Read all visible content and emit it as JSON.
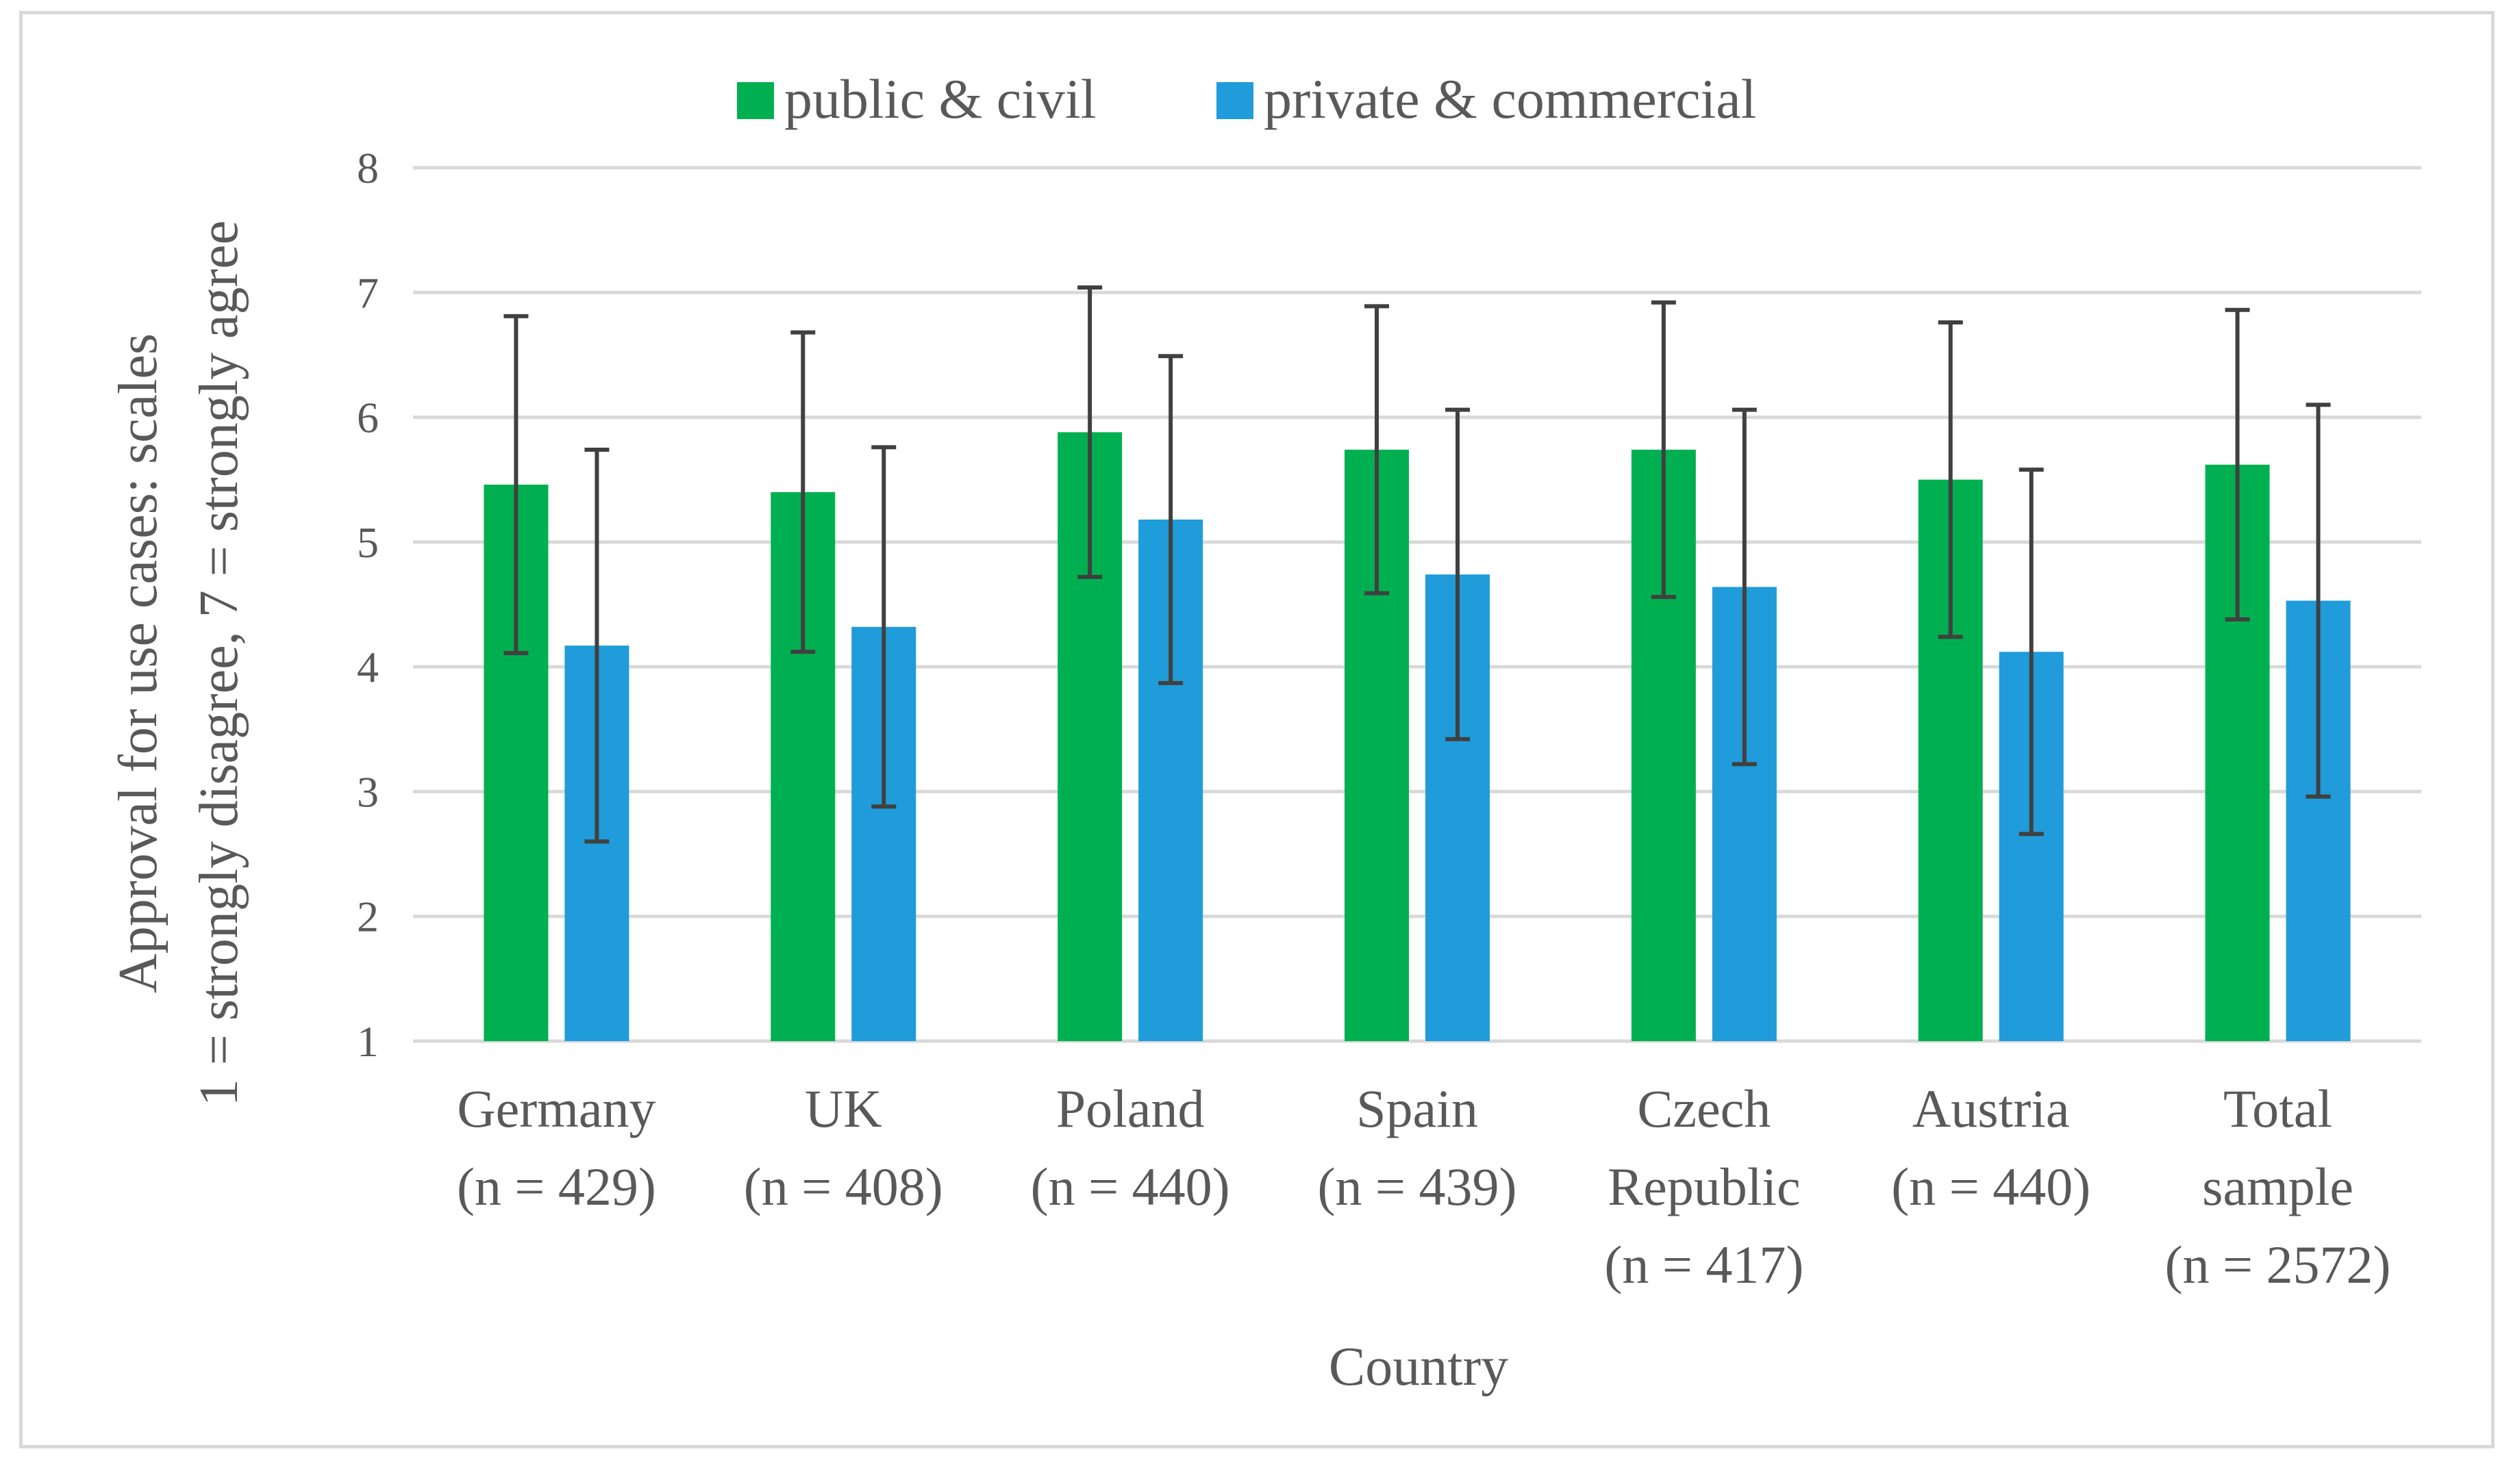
{
  "chart_data": {
    "type": "bar",
    "title": "",
    "xlabel": "Country",
    "ylabel_lines": [
      "Approval for use cases: scales",
      "1 = strongly disagree, 7 = strongly agree"
    ],
    "ylim": [
      1,
      8
    ],
    "yticks": [
      "1",
      "2",
      "3",
      "4",
      "5",
      "6",
      "7",
      "8"
    ],
    "grid": true,
    "legend_position": "top-center",
    "categories": [
      [
        "Germany",
        "(n = 429)"
      ],
      [
        "UK",
        "(n = 408)"
      ],
      [
        "Poland",
        "(n = 440)"
      ],
      [
        "Spain",
        "(n = 439)"
      ],
      [
        "Czech",
        "Republic",
        "(n = 417)"
      ],
      [
        "Austria",
        "(n = 440)"
      ],
      [
        "Total",
        "sample",
        "(n = 2572)"
      ]
    ],
    "series": [
      {
        "name": "public & civil",
        "color": "#00b050",
        "values": [
          5.46,
          5.4,
          5.88,
          5.74,
          5.74,
          5.5,
          5.62
        ],
        "error": [
          1.35,
          1.28,
          1.16,
          1.15,
          1.18,
          1.26,
          1.24
        ]
      },
      {
        "name": "private & commercial",
        "color": "#1f9cd9",
        "values": [
          4.17,
          4.32,
          5.18,
          4.74,
          4.64,
          4.12,
          4.53
        ],
        "error": [
          1.57,
          1.44,
          1.31,
          1.32,
          1.42,
          1.46,
          1.57
        ]
      }
    ],
    "error_bar_color": "#404040",
    "grid_color": "#d9d9d9"
  }
}
